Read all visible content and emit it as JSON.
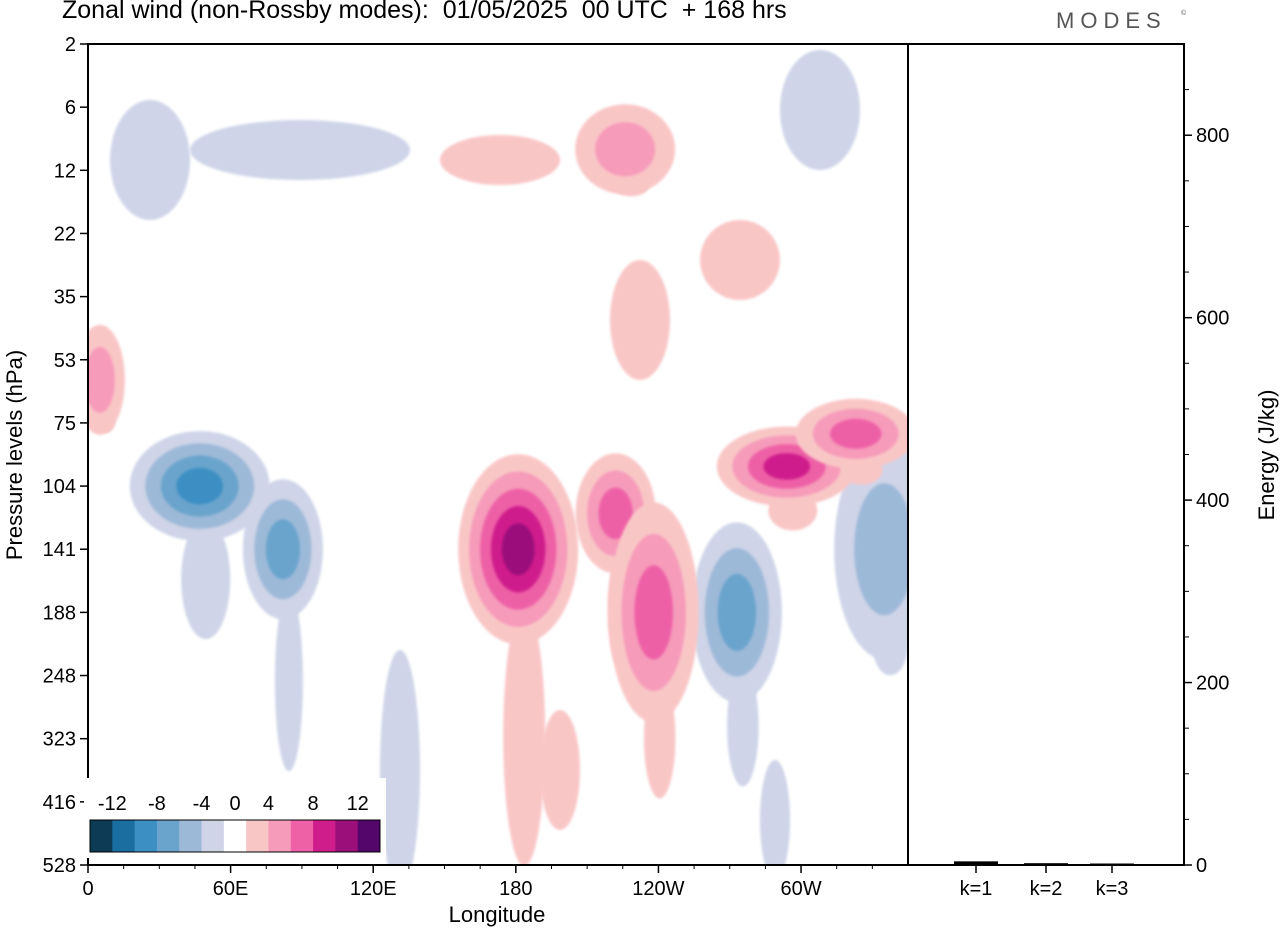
{
  "title": "Zonal wind (non-Rossby modes):  01/05/2025  00 UTC  + 168 hrs",
  "logo": "MODES",
  "logo_mark": "©",
  "chart_data": [
    {
      "type": "heatmap",
      "subtype": "filled-contour",
      "xlabel": "Longitude",
      "ylabel": "Pressure levels (hPa)",
      "x_ticks": [
        "0",
        "60E",
        "120E",
        "180",
        "120W",
        "60W"
      ],
      "x_tick_values": [
        0,
        60,
        120,
        180,
        240,
        300
      ],
      "x_range": [
        0,
        345
      ],
      "y_ticks": [
        "2",
        "6",
        "12",
        "22",
        "35",
        "53",
        "75",
        "104",
        "141",
        "188",
        "248",
        "323",
        "416",
        "528"
      ],
      "y_scale": "model levels",
      "colorbar": {
        "labels": [
          "-12",
          "-8",
          "-4",
          "0",
          "4",
          "8",
          "12"
        ],
        "label_values": [
          -12,
          -8,
          -4,
          0,
          4,
          8,
          12
        ],
        "bins": [
          -14,
          -12,
          -10,
          -8,
          -6,
          -4,
          -2,
          2,
          4,
          6,
          8,
          10,
          12,
          14
        ],
        "colors": [
          "#0d3a55",
          "#1a6ea0",
          "#3c8fc3",
          "#6aa4cc",
          "#9db9d8",
          "#cfd4e8",
          "#ffffff",
          "#f9c6c6",
          "#f69bba",
          "#ee61a6",
          "#cf1e8c",
          "#9a0f7a",
          "#55066a"
        ]
      },
      "features": [
        {
          "sign": "negative",
          "lon": 47,
          "level": "104",
          "peak": -9
        },
        {
          "sign": "negative",
          "lon": 82,
          "level": "141",
          "peak": -7
        },
        {
          "sign": "negative",
          "lon": 273,
          "level": "188",
          "peak": -7
        },
        {
          "sign": "negative",
          "lon": 335,
          "level": "141",
          "peak": -6
        },
        {
          "sign": "positive",
          "lon": 181,
          "level": "141",
          "peak": 11
        },
        {
          "sign": "positive",
          "lon": 222,
          "level": "120",
          "peak": 7
        },
        {
          "sign": "positive",
          "lon": 238,
          "level": "188",
          "peak": 7
        },
        {
          "sign": "positive",
          "lon": 294,
          "level": "95",
          "peak": 10
        },
        {
          "sign": "positive",
          "lon": 323,
          "level": "80",
          "peak": 8
        },
        {
          "sign": "positive",
          "lon": 226,
          "level": "10",
          "peak": 6
        },
        {
          "sign": "positive",
          "lon": 5,
          "level": "60",
          "peak": 6
        }
      ]
    },
    {
      "type": "bar",
      "categories": [
        "k=1",
        "k=2",
        "k=3"
      ],
      "values": [
        4,
        2,
        1
      ],
      "ylabel": "Energy (J/kg)",
      "y_ticks": [
        "0",
        "200",
        "400",
        "600",
        "800"
      ],
      "ylim": [
        0,
        900
      ]
    }
  ]
}
